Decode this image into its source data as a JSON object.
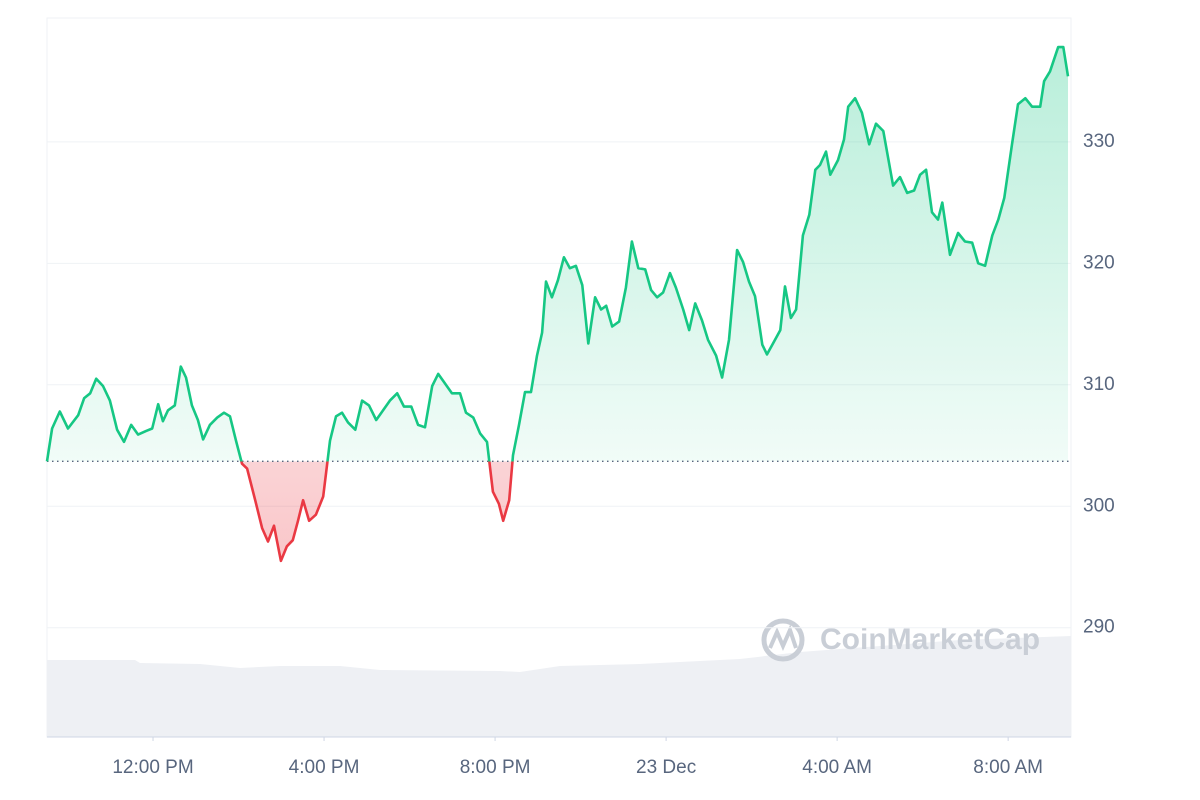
{
  "chart_data": {
    "type": "line",
    "watermark": "CoinMarketCap",
    "x": [
      9.52,
      9.64,
      9.82,
      10.01,
      10.25,
      10.39,
      10.53,
      10.67,
      10.83,
      10.99,
      11.16,
      11.32,
      11.49,
      11.65,
      11.84,
      11.98,
      12.12,
      12.23,
      12.35,
      12.51,
      12.65,
      12.77,
      12.91,
      13.05,
      13.17,
      13.33,
      13.5,
      13.66,
      13.8,
      13.94,
      14.08,
      14.2,
      14.39,
      14.55,
      14.69,
      14.83,
      14.99,
      15.13,
      15.27,
      15.39,
      15.51,
      15.65,
      15.81,
      15.98,
      16.14,
      16.28,
      16.42,
      16.56,
      16.73,
      16.89,
      17.05,
      17.22,
      17.38,
      17.54,
      17.71,
      17.87,
      18.04,
      18.2,
      18.36,
      18.53,
      18.67,
      18.83,
      18.99,
      19.18,
      19.32,
      19.49,
      19.65,
      19.81,
      19.95,
      20.09,
      20.19,
      20.33,
      20.42,
      20.56,
      20.7,
      20.84,
      20.98,
      21.1,
      21.19,
      21.33,
      21.47,
      21.61,
      21.75,
      21.89,
      22.04,
      22.18,
      22.34,
      22.48,
      22.6,
      22.74,
      22.9,
      23.06,
      23.2,
      23.35,
      23.51,
      23.65,
      23.79,
      23.93,
      24.09,
      24.23,
      24.4,
      24.54,
      24.68,
      24.84,
      24.98,
      25.17,
      25.31,
      25.47,
      25.66,
      25.8,
      25.94,
      26.08,
      26.25,
      26.36,
      26.53,
      26.67,
      26.78,
      26.92,
      27.04,
      27.2,
      27.35,
      27.49,
      27.6,
      27.74,
      27.84,
      28.02,
      28.16,
      28.26,
      28.42,
      28.58,
      28.75,
      28.91,
      29.08,
      29.31,
      29.47,
      29.64,
      29.8,
      29.94,
      30.08,
      30.22,
      30.36,
      30.46,
      30.64,
      30.83,
      30.99,
      31.16,
      31.3,
      31.46,
      31.63,
      31.77,
      31.91,
      32.09,
      32.23,
      32.4,
      32.56,
      32.75,
      32.84,
      32.98,
      33.17,
      33.29,
      33.4
    ],
    "values": [
      303.7,
      306.4,
      307.8,
      306.4,
      307.5,
      308.9,
      309.3,
      310.5,
      309.9,
      308.7,
      306.3,
      305.3,
      306.7,
      305.9,
      306.2,
      306.4,
      308.4,
      307.0,
      307.9,
      308.3,
      311.5,
      310.6,
      308.3,
      307.1,
      305.5,
      306.7,
      307.3,
      307.7,
      307.4,
      305.4,
      303.5,
      303.1,
      300.5,
      298.2,
      297.1,
      298.4,
      295.5,
      296.7,
      297.2,
      298.8,
      300.5,
      298.8,
      299.3,
      300.8,
      305.4,
      307.4,
      307.7,
      306.9,
      306.3,
      308.7,
      308.3,
      307.1,
      307.9,
      308.7,
      309.3,
      308.2,
      308.2,
      306.7,
      306.5,
      309.9,
      310.9,
      310.1,
      309.3,
      309.3,
      307.7,
      307.3,
      306.0,
      305.3,
      301.2,
      300.2,
      298.8,
      300.5,
      304.2,
      306.7,
      309.4,
      309.4,
      312.4,
      314.3,
      318.5,
      317.2,
      318.6,
      320.5,
      319.6,
      319.8,
      318.2,
      313.4,
      317.2,
      316.2,
      316.5,
      314.8,
      315.2,
      318.0,
      321.8,
      319.6,
      319.5,
      317.8,
      317.2,
      317.6,
      319.2,
      318.0,
      316.2,
      314.5,
      316.7,
      315.3,
      313.7,
      312.4,
      310.6,
      313.7,
      321.1,
      320.1,
      318.5,
      317.3,
      313.3,
      312.5,
      313.6,
      314.5,
      318.1,
      315.5,
      316.2,
      322.3,
      324.0,
      327.7,
      328.1,
      329.2,
      327.3,
      328.5,
      330.2,
      332.9,
      333.6,
      332.4,
      329.8,
      331.5,
      330.9,
      326.4,
      327.1,
      325.8,
      326.0,
      327.3,
      327.7,
      324.2,
      323.6,
      325.0,
      320.7,
      322.5,
      321.8,
      321.7,
      320.0,
      319.8,
      322.3,
      323.6,
      325.4,
      329.8,
      333.1,
      333.6,
      332.9,
      332.9,
      335.0,
      335.8,
      337.8,
      337.8,
      335.4
    ],
    "baseline": 303.7,
    "up_color": "#16c784",
    "down_color": "#ea3943",
    "xlim": [
      9.52,
      33.47
    ],
    "xticks": [
      {
        "value": 12,
        "label": "12:00 PM"
      },
      {
        "value": 16,
        "label": "4:00 PM"
      },
      {
        "value": 20,
        "label": "8:00 PM"
      },
      {
        "value": 24,
        "label": "23 Dec"
      },
      {
        "value": 28,
        "label": "4:00 AM"
      },
      {
        "value": 32,
        "label": "8:00 AM"
      }
    ],
    "ylim": [
      281,
      340.2
    ],
    "yticks": [
      290,
      300,
      310,
      320,
      330
    ],
    "grid": true
  }
}
